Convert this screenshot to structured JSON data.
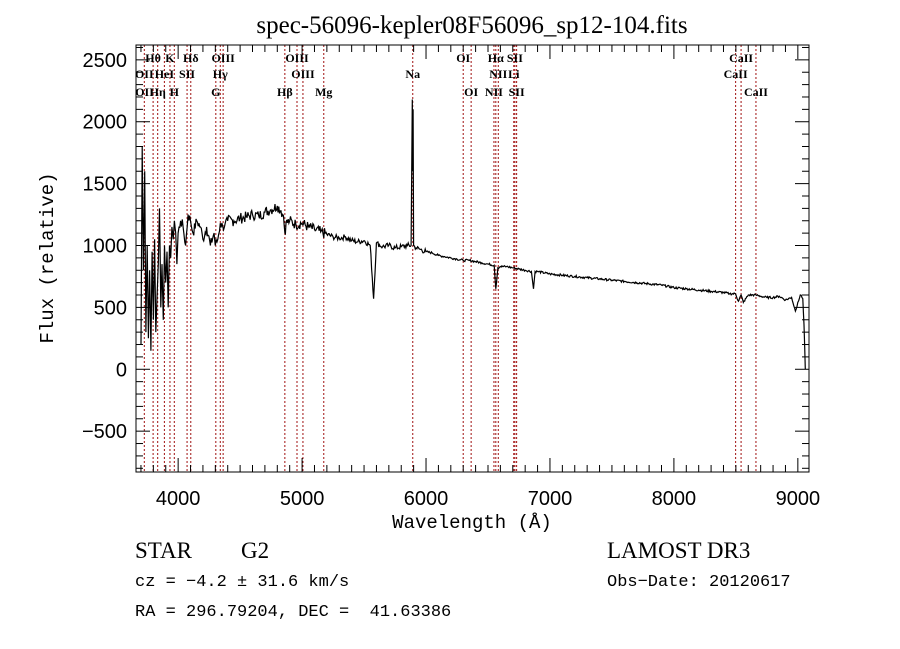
{
  "chart_data": {
    "type": "line",
    "title": "spec-56096-kepler08F56096_sp12-104.fits",
    "xlabel": "Wavelength (Å)",
    "ylabel": "Flux (relative)",
    "xlim": [
      3660,
      9090
    ],
    "ylim": [
      -830,
      2620
    ],
    "xticks": [
      4000,
      5000,
      6000,
      7000,
      8000,
      9000
    ],
    "xtick_labels": [
      "4000",
      "5000",
      "6000",
      "7000",
      "8000",
      "9000"
    ],
    "x_minor_step": 100,
    "yticks": [
      -500,
      0,
      500,
      1000,
      1500,
      2000,
      2500
    ],
    "ytick_labels": [
      "−500",
      "0",
      "500",
      "1000",
      "1500",
      "2000",
      "2500"
    ],
    "y_minor_step": 100,
    "grid": false,
    "line_color": "#000000",
    "marker_color": "#a01010",
    "series": [
      {
        "name": "spectrum",
        "x": [
          3700,
          3710,
          3720,
          3730,
          3740,
          3750,
          3760,
          3770,
          3780,
          3790,
          3800,
          3810,
          3820,
          3830,
          3840,
          3850,
          3860,
          3870,
          3880,
          3890,
          3900,
          3910,
          3920,
          3930,
          3940,
          3950,
          3960,
          3970,
          3980,
          3990,
          4000,
          4020,
          4040,
          4060,
          4080,
          4100,
          4120,
          4150,
          4180,
          4200,
          4230,
          4260,
          4290,
          4300,
          4320,
          4340,
          4360,
          4380,
          4400,
          4450,
          4500,
          4550,
          4600,
          4650,
          4700,
          4750,
          4800,
          4830,
          4850,
          4861,
          4870,
          4900,
          4950,
          5000,
          5050,
          5100,
          5150,
          5200,
          5250,
          5300,
          5350,
          5400,
          5450,
          5500,
          5550,
          5577,
          5600,
          5650,
          5700,
          5750,
          5800,
          5850,
          5880,
          5889,
          5893,
          5896,
          5900,
          5920,
          5950,
          6000,
          6050,
          6100,
          6150,
          6200,
          6250,
          6300,
          6350,
          6400,
          6450,
          6500,
          6550,
          6563,
          6580,
          6600,
          6650,
          6700,
          6750,
          6800,
          6850,
          6867,
          6880,
          6900,
          7000,
          7100,
          7200,
          7300,
          7400,
          7500,
          7600,
          7700,
          7800,
          7900,
          8000,
          8100,
          8200,
          8300,
          8400,
          8450,
          8498,
          8520,
          8542,
          8560,
          8600,
          8662,
          8700,
          8750,
          8800,
          8850,
          8900,
          8950,
          8980,
          9000,
          9020,
          9040,
          9050,
          9060
        ],
        "y": [
          200,
          1800,
          800,
          1600,
          300,
          1000,
          250,
          800,
          150,
          950,
          400,
          1050,
          300,
          600,
          850,
          1300,
          500,
          850,
          400,
          1000,
          700,
          950,
          500,
          1000,
          900,
          1150,
          1050,
          1200,
          1100,
          850,
          1100,
          1200,
          1150,
          1000,
          1250,
          1200,
          1100,
          1200,
          1150,
          1050,
          1150,
          1000,
          1100,
          1000,
          1050,
          1180,
          1150,
          1180,
          1200,
          1200,
          1220,
          1230,
          1250,
          1240,
          1270,
          1290,
          1320,
          1280,
          1240,
          1100,
          1180,
          1200,
          1170,
          1180,
          1150,
          1130,
          1110,
          1090,
          1070,
          1060,
          1070,
          1040,
          1030,
          1040,
          1000,
          570,
          1020,
          990,
          1000,
          980,
          990,
          1000,
          1000,
          2180,
          1600,
          2100,
          1000,
          980,
          970,
          950,
          940,
          920,
          910,
          900,
          890,
          880,
          880,
          870,
          860,
          850,
          840,
          650,
          820,
          830,
          830,
          820,
          810,
          800,
          790,
          650,
          790,
          790,
          770,
          760,
          750,
          740,
          730,
          720,
          710,
          700,
          690,
          680,
          660,
          650,
          640,
          630,
          620,
          610,
          610,
          550,
          600,
          540,
          600,
          600,
          590,
          580,
          580,
          590,
          560,
          580,
          470,
          540,
          600,
          570,
          360,
          0
        ]
      }
    ],
    "line_markers": [
      {
        "label": "Hθ",
        "wavelength": 3798,
        "row": 1
      },
      {
        "label": "K",
        "wavelength": 3934,
        "row": 1
      },
      {
        "label": "Hδ",
        "wavelength": 4102,
        "row": 1
      },
      {
        "label": "OIII",
        "wavelength": 4363,
        "row": 1
      },
      {
        "label": "OIII",
        "wavelength": 4959,
        "row": 1
      },
      {
        "label": "Na",
        "wavelength": 5893,
        "row": 2
      },
      {
        "label": "OI",
        "wavelength": 6300,
        "row": 1
      },
      {
        "label": "Hα",
        "wavelength": 6563,
        "row": 1
      },
      {
        "label": "SII",
        "wavelength": 6717,
        "row": 1
      },
      {
        "label": "CaII",
        "wavelength": 8542,
        "row": 1
      },
      {
        "label": "OII",
        "wavelength": 3727,
        "row": 2
      },
      {
        "label": "HeI",
        "wavelength": 3889,
        "row": 2
      },
      {
        "label": "SII",
        "wavelength": 4072,
        "row": 2
      },
      {
        "label": "Hγ",
        "wavelength": 4340,
        "row": 2
      },
      {
        "label": "OIII",
        "wavelength": 5007,
        "row": 2
      },
      {
        "label": "NII",
        "wavelength": 6583,
        "row": 2
      },
      {
        "label": "Li",
        "wavelength": 6708,
        "row": 2
      },
      {
        "label": "CaII",
        "wavelength": 8498,
        "row": 2
      },
      {
        "label": "OII",
        "wavelength": 3729,
        "row": 3
      },
      {
        "label": "Hη",
        "wavelength": 3835,
        "row": 3
      },
      {
        "label": "H",
        "wavelength": 3969,
        "row": 3
      },
      {
        "label": "G",
        "wavelength": 4304,
        "row": 3
      },
      {
        "label": "Hβ",
        "wavelength": 4861,
        "row": 3
      },
      {
        "label": "Mg",
        "wavelength": 5175,
        "row": 3
      },
      {
        "label": "OI",
        "wavelength": 6364,
        "row": 3
      },
      {
        "label": "NII",
        "wavelength": 6548,
        "row": 3
      },
      {
        "label": "SII",
        "wavelength": 6731,
        "row": 3
      },
      {
        "label": "CaII",
        "wavelength": 8662,
        "row": 3
      }
    ],
    "marker_lines_x": [
      3727,
      3798,
      3835,
      3889,
      3934,
      3969,
      4072,
      4102,
      4304,
      4340,
      4363,
      4861,
      4959,
      5007,
      5175,
      5893,
      6300,
      6364,
      6548,
      6563,
      6583,
      6708,
      6717,
      6731,
      8498,
      8542,
      8662
    ]
  },
  "info": {
    "object_class": "STAR",
    "subclass": "G2",
    "survey": "LAMOST DR3",
    "redshift": "cz = −4.2 ± 31.6 km/s",
    "obs_date": "Obs−Date: 20120617",
    "coords": "RA = 296.79204, DEC =  41.63386"
  }
}
